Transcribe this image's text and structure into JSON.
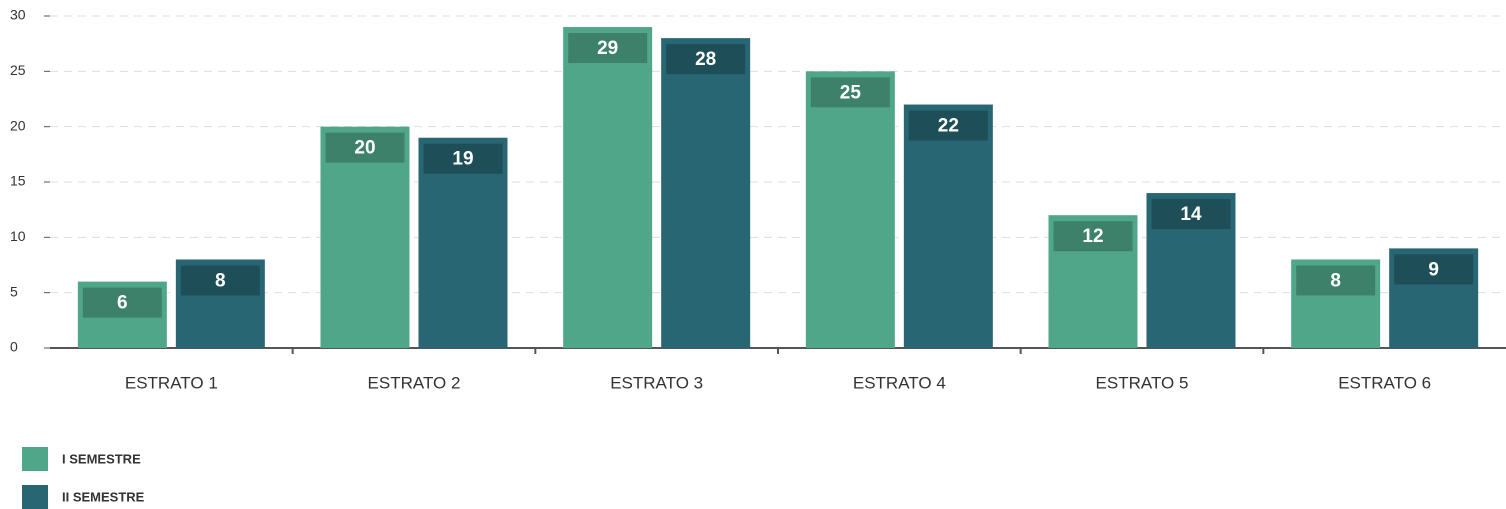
{
  "chart_data": {
    "type": "bar",
    "categories": [
      "ESTRATO 1",
      "ESTRATO 2",
      "ESTRATO 3",
      "ESTRATO 4",
      "ESTRATO 5",
      "ESTRATO 6"
    ],
    "series": [
      {
        "name": "I SEMESTRE",
        "color": "#4fa688",
        "values": [
          6,
          20,
          29,
          25,
          12,
          8
        ]
      },
      {
        "name": "II SEMESTRE",
        "color": "#276672",
        "values": [
          8,
          19,
          28,
          22,
          14,
          9
        ]
      }
    ],
    "ylim": [
      0,
      30
    ],
    "yticks": [
      0,
      5,
      10,
      15,
      20,
      25,
      30
    ],
    "grid": true,
    "legend": "bottom-left"
  }
}
